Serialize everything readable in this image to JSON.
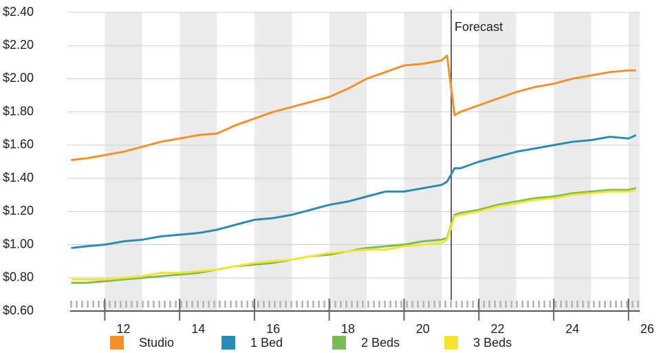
{
  "chart_data": {
    "type": "line",
    "x": [
      10.6,
      11,
      11.5,
      12,
      12.5,
      13,
      13.5,
      14,
      14.5,
      15,
      15.5,
      16,
      16.5,
      17,
      17.5,
      18,
      18.5,
      19,
      19.5,
      20,
      20.5,
      20.65,
      20.85,
      21,
      21.5,
      22,
      22.5,
      23,
      23.5,
      24,
      24.5,
      25,
      25.5,
      25.7
    ],
    "series": [
      {
        "name": "Studio",
        "color": "#f0912c",
        "values": [
          1.51,
          1.52,
          1.54,
          1.56,
          1.59,
          1.62,
          1.64,
          1.66,
          1.67,
          1.72,
          1.76,
          1.8,
          1.83,
          1.86,
          1.89,
          1.94,
          2.0,
          2.04,
          2.08,
          2.09,
          2.11,
          2.14,
          1.78,
          1.8,
          1.84,
          1.88,
          1.92,
          1.95,
          1.97,
          2.0,
          2.02,
          2.04,
          2.05,
          2.05
        ]
      },
      {
        "name": "1 Bed",
        "color": "#2b8bb0",
        "values": [
          0.98,
          0.99,
          1.0,
          1.02,
          1.03,
          1.05,
          1.06,
          1.07,
          1.09,
          1.12,
          1.15,
          1.16,
          1.18,
          1.21,
          1.24,
          1.26,
          1.29,
          1.32,
          1.32,
          1.34,
          1.36,
          1.38,
          1.46,
          1.46,
          1.5,
          1.53,
          1.56,
          1.58,
          1.6,
          1.62,
          1.63,
          1.65,
          1.64,
          1.66
        ]
      },
      {
        "name": "2 Beds",
        "color": "#7dba5a",
        "values": [
          0.77,
          0.77,
          0.78,
          0.79,
          0.8,
          0.81,
          0.82,
          0.83,
          0.85,
          0.87,
          0.88,
          0.89,
          0.91,
          0.93,
          0.94,
          0.96,
          0.98,
          0.99,
          1.0,
          1.02,
          1.03,
          1.04,
          1.18,
          1.19,
          1.21,
          1.24,
          1.26,
          1.28,
          1.29,
          1.31,
          1.32,
          1.33,
          1.33,
          1.34
        ]
      },
      {
        "name": "3 Beds",
        "color": "#f5e433",
        "values": [
          0.79,
          0.79,
          0.79,
          0.8,
          0.81,
          0.83,
          0.83,
          0.84,
          0.85,
          0.87,
          0.89,
          0.9,
          0.91,
          0.93,
          0.95,
          0.96,
          0.97,
          0.97,
          0.99,
          1.0,
          1.01,
          1.03,
          1.17,
          1.18,
          1.2,
          1.23,
          1.25,
          1.27,
          1.28,
          1.3,
          1.31,
          1.32,
          1.32,
          1.33
        ]
      }
    ],
    "xlim": [
      10.5,
      25.8
    ],
    "xticks": [
      12,
      14,
      16,
      18,
      20,
      22,
      24,
      26
    ],
    "ylim": [
      0.6,
      2.4
    ],
    "yticks": [
      {
        "value": 0.6,
        "label": "$0.60"
      },
      {
        "value": 0.8,
        "label": "$0.80"
      },
      {
        "value": 1.0,
        "label": "$1.00"
      },
      {
        "value": 1.2,
        "label": "$1.20"
      },
      {
        "value": 1.4,
        "label": "$1.40"
      },
      {
        "value": 1.6,
        "label": "$1.60"
      },
      {
        "value": 1.8,
        "label": "$1.80"
      },
      {
        "value": 2.0,
        "label": "$2.00"
      },
      {
        "value": 2.2,
        "label": "$2.20"
      },
      {
        "value": 2.4,
        "label": "$2.40"
      }
    ],
    "grid": true,
    "forecast": {
      "x": 20.76,
      "label": "Forecast"
    },
    "legend": "bottom"
  }
}
